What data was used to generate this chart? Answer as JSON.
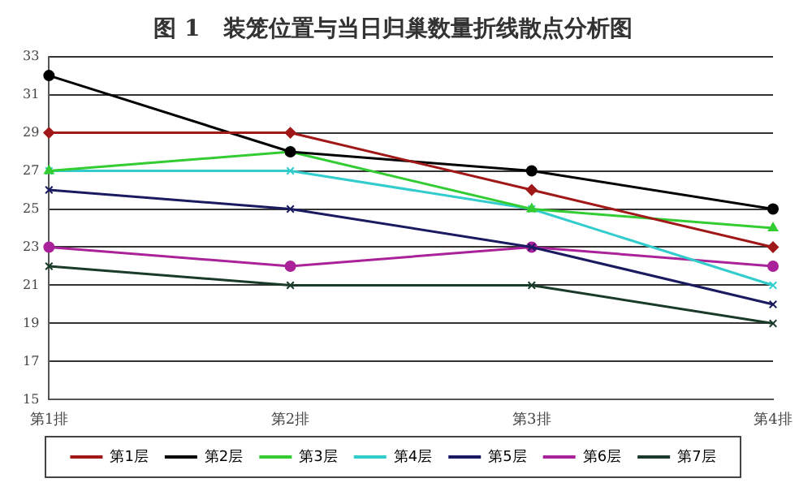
{
  "chart_data": {
    "type": "line",
    "title": "图 1　装笼位置与当日归巢数量折线散点分析图",
    "categories": [
      "第1排",
      "第2排",
      "第3排",
      "第4排"
    ],
    "ylim": [
      15,
      33
    ],
    "yticks": [
      15,
      17,
      19,
      21,
      23,
      25,
      27,
      29,
      31,
      33
    ],
    "grid": "y",
    "legend": "bottom",
    "series": [
      {
        "name": "第1层",
        "color": "#a01818",
        "marker": "diamond",
        "values": [
          29,
          29,
          26,
          23
        ]
      },
      {
        "name": "第2层",
        "color": "#000000",
        "marker": "circle",
        "values": [
          32,
          28,
          27,
          25
        ]
      },
      {
        "name": "第3层",
        "color": "#33cc33",
        "marker": "triangle",
        "values": [
          27,
          28,
          25,
          24
        ]
      },
      {
        "name": "第4层",
        "color": "#33cccc",
        "marker": "cross",
        "values": [
          27,
          27,
          25,
          21
        ]
      },
      {
        "name": "第5层",
        "color": "#1a1a60",
        "marker": "cross",
        "values": [
          26,
          25,
          23,
          20
        ]
      },
      {
        "name": "第6层",
        "color": "#aa2299",
        "marker": "circle",
        "values": [
          23,
          22,
          23,
          22
        ]
      },
      {
        "name": "第7层",
        "color": "#1a3a2a",
        "marker": "cross",
        "values": [
          22,
          21,
          21,
          19
        ]
      }
    ]
  }
}
